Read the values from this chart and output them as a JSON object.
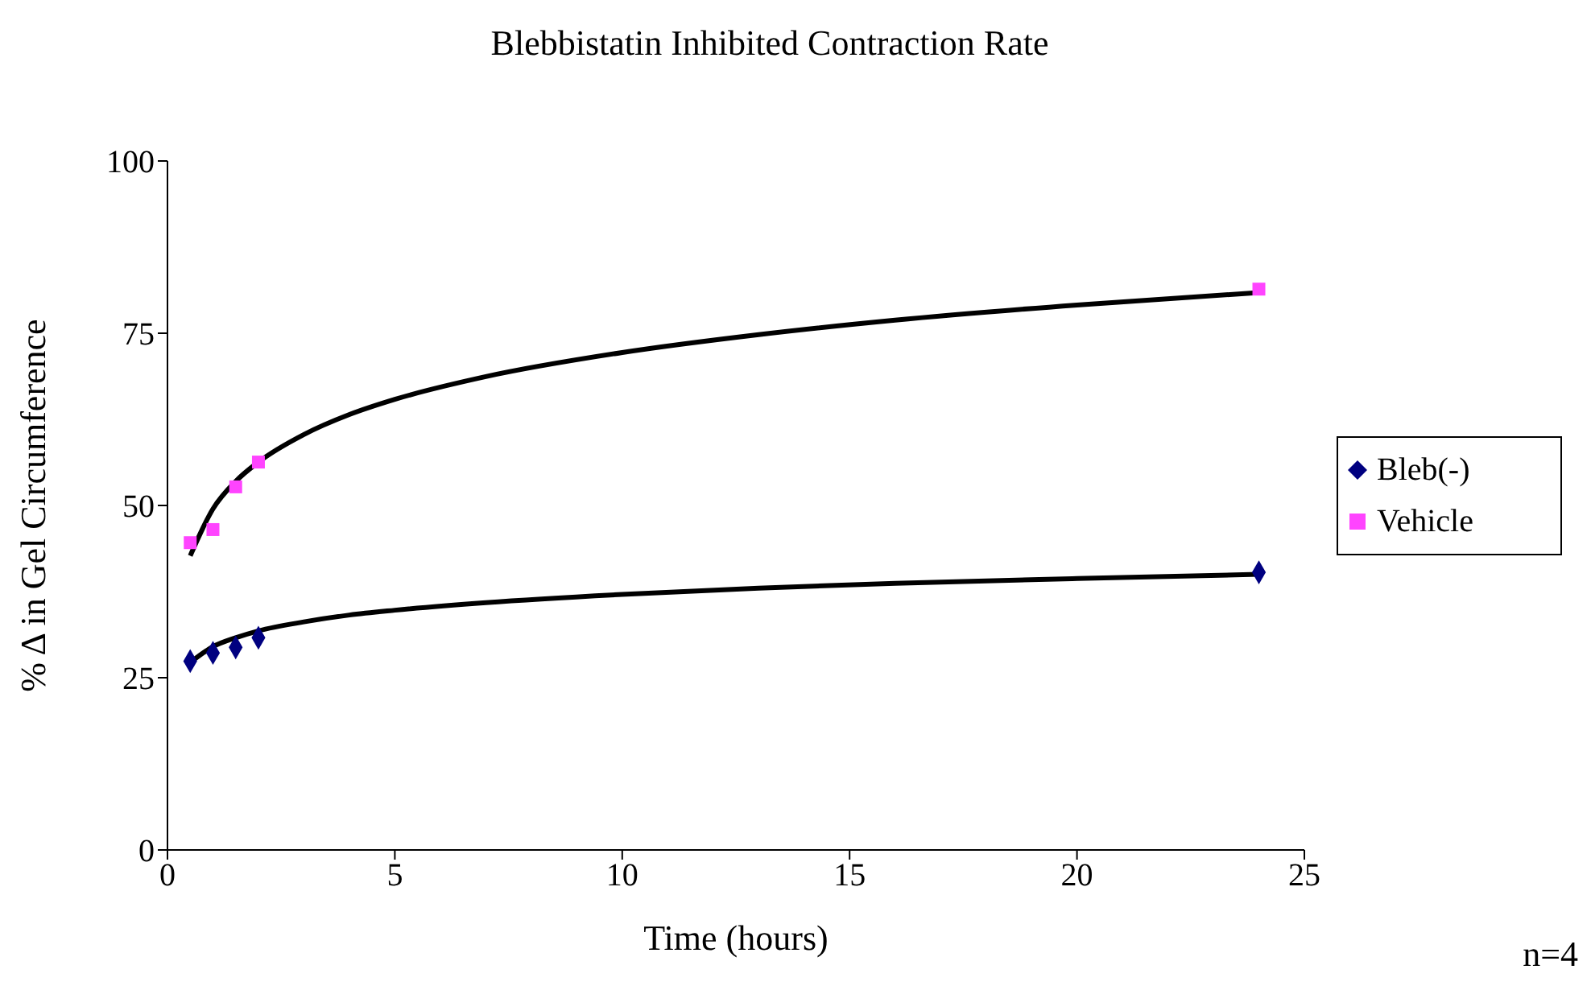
{
  "chart_data": {
    "type": "scatter",
    "title": "Blebbistatin Inhibited Contraction Rate",
    "xlabel": "Time (hours)",
    "ylabel": "% Δ in Gel Circumference",
    "xlim": [
      0,
      25
    ],
    "xticks": [
      0,
      5,
      10,
      15,
      20,
      25
    ],
    "ylim": [
      0,
      100
    ],
    "yticks": [
      0,
      25,
      50,
      75,
      100
    ],
    "grid": false,
    "legend": "right",
    "annotations": [
      "n=4"
    ],
    "series": [
      {
        "name": "Bleb(-)",
        "color": "#000080",
        "marker": "diamond",
        "x": [
          0.5,
          1,
          1.5,
          2,
          24
        ],
        "values": [
          27.4,
          28.6,
          29.4,
          30.8,
          40.3
        ]
      },
      {
        "name": "Vehicle",
        "color": "#ff44ff",
        "marker": "square",
        "x": [
          0.5,
          1,
          1.5,
          2,
          24
        ],
        "values": [
          44.6,
          46.5,
          52.7,
          56.3,
          81.4
        ]
      },
      {
        "type": "line",
        "color": "#000000",
        "marker": "none",
        "x": [
          0.5,
          1,
          1.5,
          2,
          3,
          4,
          5,
          7,
          10,
          13,
          16,
          20,
          24
        ],
        "values": [
          27.2,
          29.5,
          30.8,
          31.8,
          33.1,
          34.1,
          34.8,
          35.9,
          37.1,
          38.0,
          38.7,
          39.4,
          40.0
        ]
      },
      {
        "type": "line",
        "color": "#000000",
        "marker": "none",
        "x": [
          0.5,
          1,
          1.5,
          2,
          3,
          4,
          5,
          7,
          10,
          13,
          16,
          20,
          24
        ],
        "values": [
          42.7,
          49.5,
          53.5,
          56.3,
          60.3,
          63.2,
          65.4,
          68.7,
          72.2,
          74.8,
          76.9,
          79.1,
          80.9
        ]
      }
    ]
  }
}
